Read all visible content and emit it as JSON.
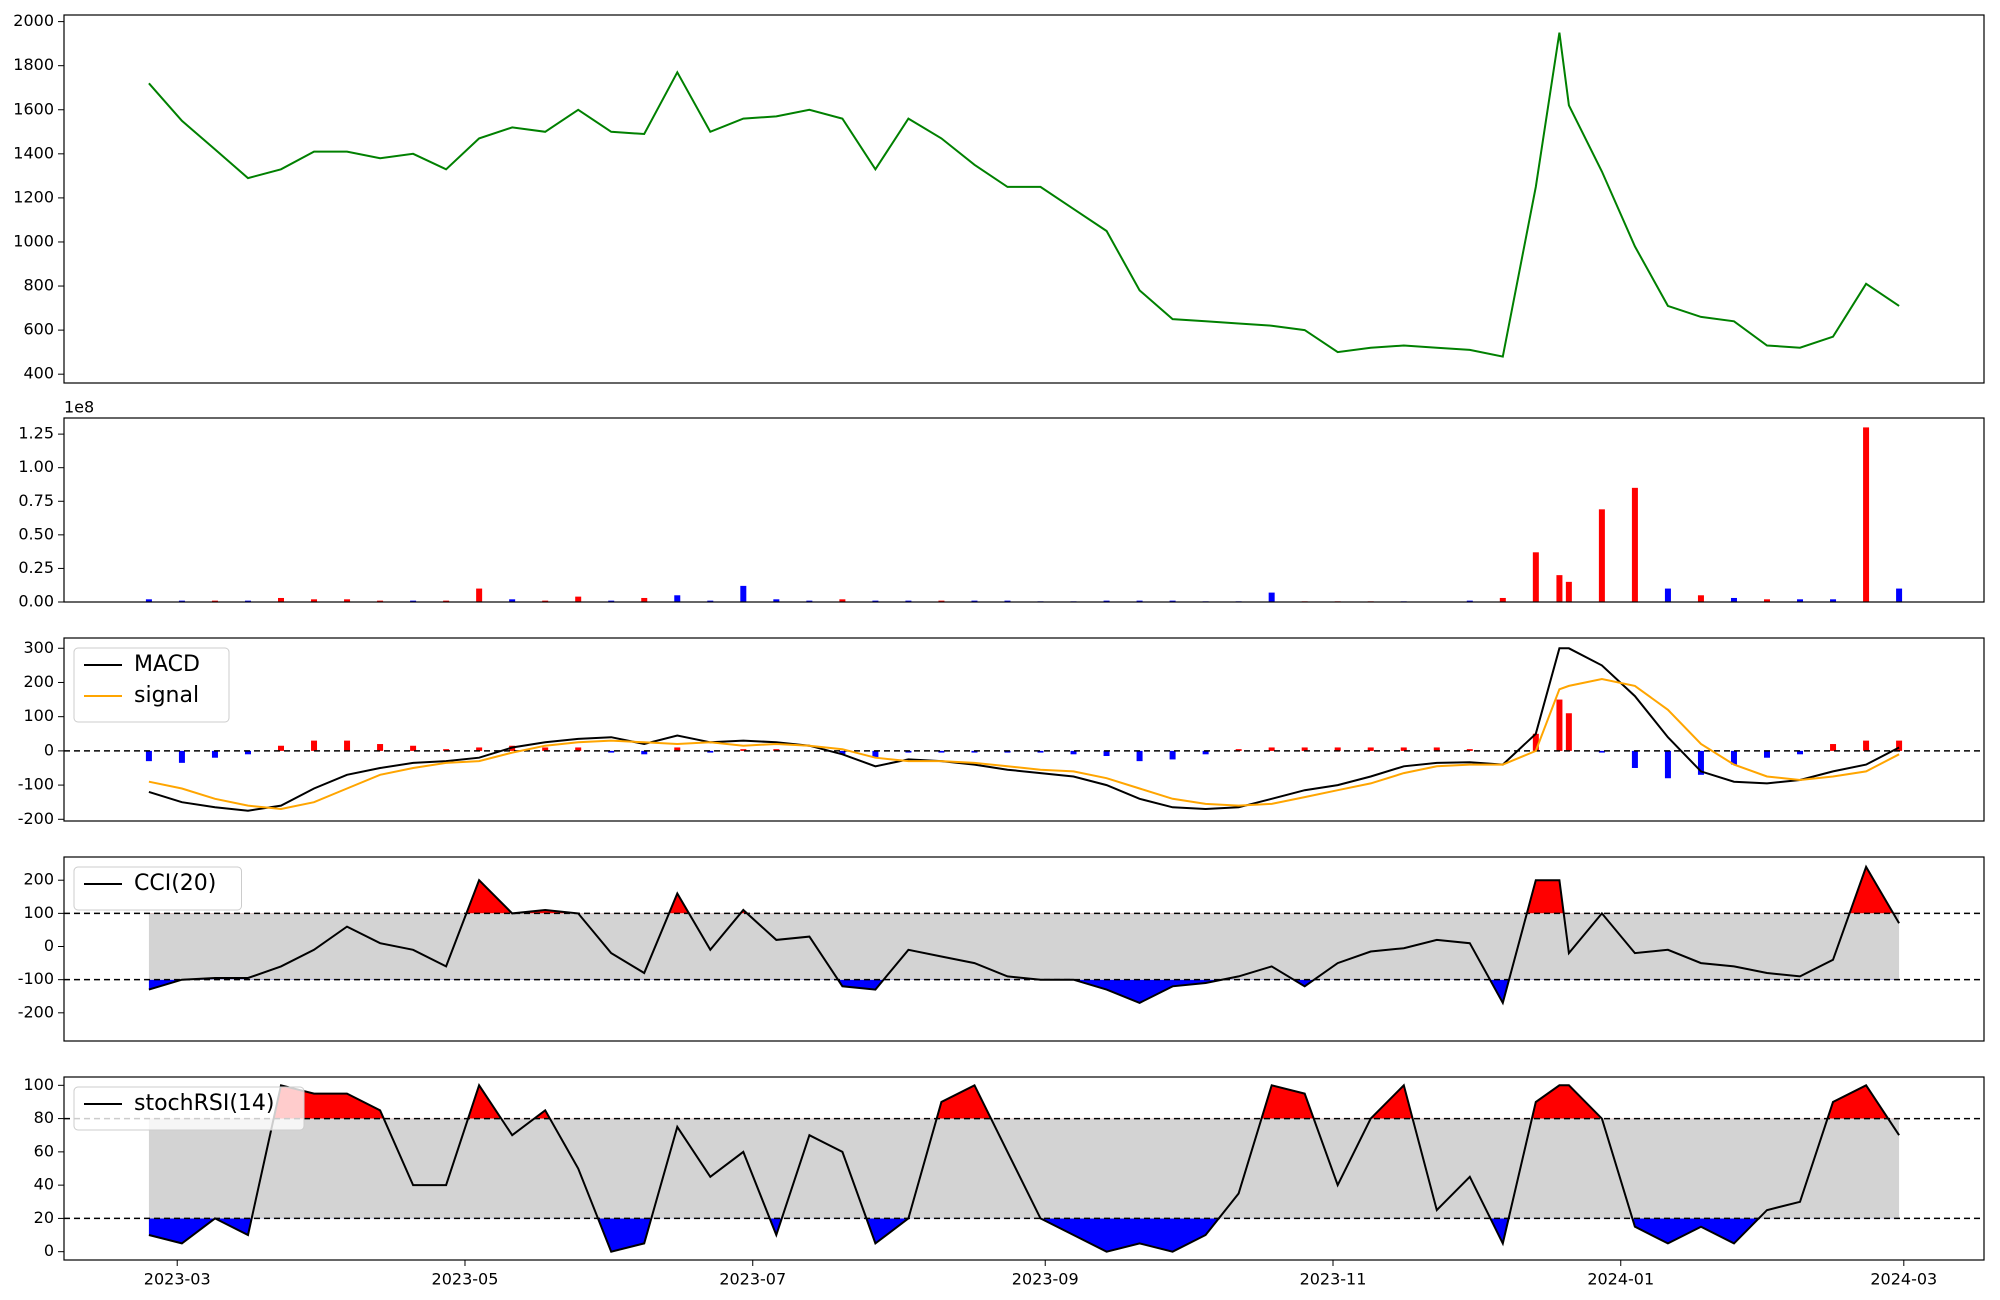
{
  "chart_data": [
    {
      "type": "line",
      "x": [
        "2023-02-23",
        "2023-03-02",
        "2023-03-09",
        "2023-03-16",
        "2023-03-23",
        "2023-03-30",
        "2023-04-06",
        "2023-04-13",
        "2023-04-20",
        "2023-04-27",
        "2023-05-04",
        "2023-05-11",
        "2023-05-18",
        "2023-05-25",
        "2023-06-01",
        "2023-06-08",
        "2023-06-15",
        "2023-06-22",
        "2023-06-29",
        "2023-07-06",
        "2023-07-13",
        "2023-07-20",
        "2023-07-27",
        "2023-08-03",
        "2023-08-10",
        "2023-08-17",
        "2023-08-24",
        "2023-08-31",
        "2023-09-07",
        "2023-09-14",
        "2023-09-21",
        "2023-09-28",
        "2023-10-05",
        "2023-10-12",
        "2023-10-19",
        "2023-10-26",
        "2023-11-02",
        "2023-11-09",
        "2023-11-16",
        "2023-11-23",
        "2023-11-30",
        "2023-12-07",
        "2023-12-14",
        "2023-12-19",
        "2023-12-21",
        "2023-12-28",
        "2024-01-04",
        "2024-01-11",
        "2024-01-18",
        "2024-01-25",
        "2024-02-01",
        "2024-02-08",
        "2024-02-15",
        "2024-02-22",
        "2024-02-29"
      ],
      "xlim": [
        "2023-02-05",
        "2024-03-18"
      ],
      "ylim": [
        360,
        2030
      ],
      "yticks": [
        400,
        600,
        800,
        1000,
        1200,
        1400,
        1600,
        1800,
        2000
      ],
      "series": [
        {
          "color": "green",
          "values": [
            1720,
            1550,
            1420,
            1290,
            1330,
            1410,
            1410,
            1380,
            1400,
            1330,
            1470,
            1520,
            1500,
            1600,
            1500,
            1490,
            1770,
            1500,
            1560,
            1570,
            1600,
            1560,
            1330,
            1560,
            1470,
            1350,
            1250,
            1250,
            1150,
            1050,
            780,
            650,
            640,
            630,
            620,
            600,
            500,
            520,
            530,
            520,
            510,
            480,
            1250,
            1950,
            1620,
            1320,
            980,
            710,
            660,
            640,
            530,
            520,
            570,
            810,
            710
          ]
        }
      ]
    },
    {
      "type": "bar",
      "offset_label": "1e8",
      "ylim": [
        0,
        1.37
      ],
      "yticks": [
        {
          "value": 0,
          "label": "0.00"
        },
        0.25,
        {
          "value": 0.5,
          "label": "0.50"
        },
        0.75,
        {
          "value": 1,
          "label": "1.00"
        },
        1.25
      ],
      "values": [
        0.02,
        0.01,
        0.01,
        0.01,
        0.03,
        0.02,
        0.02,
        0.01,
        0.01,
        0.01,
        0.1,
        0.02,
        0.01,
        0.04,
        0.01,
        0.03,
        0.05,
        0.01,
        0.12,
        0.02,
        0.01,
        0.02,
        0.01,
        0.01,
        0.01,
        0.01,
        0.01,
        0.005,
        0.005,
        0.01,
        0.01,
        0.01,
        0.005,
        0.005,
        0.07,
        0.005,
        0.005,
        0.005,
        0.005,
        0,
        0.01,
        0.03,
        0.37,
        0.2,
        0.15,
        0.69,
        0.85,
        0.1,
        0.05,
        0.03,
        0.02,
        0.02,
        0.02,
        1.3,
        0.1
      ],
      "colors": [
        "blue",
        "blue",
        "red",
        "blue",
        "red",
        "red",
        "red",
        "red",
        "blue",
        "red",
        "red",
        "blue",
        "red",
        "red",
        "blue",
        "red",
        "blue",
        "blue",
        "blue",
        "blue",
        "blue",
        "red",
        "blue",
        "blue",
        "red",
        "blue",
        "blue",
        "blue",
        "blue",
        "blue",
        "blue",
        "blue",
        "blue",
        "blue",
        "blue",
        "red",
        "red",
        "red",
        "blue",
        "blue",
        "blue",
        "red",
        "red",
        "red",
        "red",
        "red",
        "red",
        "blue",
        "red",
        "blue",
        "red",
        "blue",
        "blue",
        "red",
        "blue"
      ]
    },
    {
      "type": "macd",
      "legend": "upper left",
      "ylim": [
        -205,
        330
      ],
      "yticks": [
        -200,
        -100,
        0,
        100,
        200,
        300
      ],
      "hlines": [
        0
      ],
      "series": [
        {
          "name": "MACD",
          "color": "black",
          "values": [
            -120,
            -150,
            -165,
            -175,
            -160,
            -110,
            -70,
            -50,
            -35,
            -30,
            -20,
            10,
            25,
            35,
            40,
            20,
            45,
            25,
            30,
            25,
            15,
            -10,
            -45,
            -25,
            -30,
            -40,
            -55,
            -65,
            -75,
            -100,
            -140,
            -165,
            -170,
            -165,
            -140,
            -115,
            -100,
            -75,
            -45,
            -35,
            -33,
            -40,
            50,
            300,
            300,
            250,
            160,
            40,
            -60,
            -90,
            -95,
            -85,
            -60,
            -40,
            10
          ]
        },
        {
          "name": "signal",
          "color": "orange",
          "values": [
            -90,
            -110,
            -140,
            -160,
            -170,
            -150,
            -110,
            -70,
            -50,
            -35,
            -30,
            -5,
            15,
            25,
            30,
            25,
            20,
            25,
            15,
            20,
            15,
            5,
            -20,
            -30,
            -30,
            -35,
            -45,
            -55,
            -60,
            -80,
            -110,
            -140,
            -155,
            -160,
            -155,
            -135,
            -115,
            -95,
            -65,
            -45,
            -40,
            -40,
            0,
            180,
            190,
            210,
            190,
            120,
            20,
            -40,
            -75,
            -85,
            -75,
            -60,
            -10
          ]
        }
      ],
      "histogram": {
        "up_color": "red",
        "down_color": "blue",
        "values": [
          -30,
          -35,
          -20,
          -10,
          15,
          30,
          30,
          20,
          15,
          5,
          10,
          15,
          10,
          10,
          -5,
          -10,
          10,
          -5,
          5,
          5,
          0,
          -10,
          -20,
          -5,
          -5,
          -5,
          -5,
          -5,
          -10,
          -15,
          -30,
          -25,
          -10,
          5,
          10,
          10,
          10,
          10,
          10,
          10,
          5,
          0,
          50,
          150,
          110,
          -5,
          -50,
          -80,
          -70,
          -40,
          -20,
          -10,
          20,
          30,
          30
        ]
      }
    },
    {
      "type": "oscillator",
      "legend": "upper left",
      "ylim": [
        -285,
        270
      ],
      "yticks": [
        -200,
        -100,
        0,
        100,
        200
      ],
      "thresholds": [
        100,
        -100
      ],
      "band_color": "lightgray",
      "above_color": "red",
      "below_color": "blue",
      "series": [
        {
          "name": "CCI(20)",
          "color": "black",
          "values": [
            -130,
            -100,
            -95,
            -95,
            -60,
            -10,
            60,
            10,
            -10,
            -60,
            200,
            100,
            110,
            100,
            -20,
            -80,
            160,
            -10,
            110,
            20,
            30,
            -120,
            -130,
            -10,
            -30,
            -50,
            -90,
            -100,
            -100,
            -130,
            -170,
            -120,
            -110,
            -90,
            -60,
            -120,
            -50,
            -15,
            -5,
            20,
            10,
            -170,
            200,
            200,
            -20,
            100,
            -20,
            -10,
            -50,
            -60,
            -80,
            -90,
            -40,
            240,
            70
          ]
        }
      ]
    },
    {
      "type": "oscillator",
      "legend": "upper left",
      "ylim": [
        -5,
        105
      ],
      "yticks": [
        0,
        20,
        40,
        60,
        80,
        100
      ],
      "thresholds": [
        80,
        20
      ],
      "band_color": "lightgray",
      "above_color": "red",
      "below_color": "blue",
      "series": [
        {
          "name": "stochRSI(14)",
          "color": "black",
          "values": [
            10,
            5,
            20,
            10,
            100,
            95,
            95,
            85,
            40,
            40,
            100,
            70,
            85,
            50,
            0,
            5,
            75,
            45,
            60,
            10,
            70,
            60,
            5,
            20,
            90,
            100,
            60,
            20,
            10,
            0,
            5,
            0,
            10,
            35,
            100,
            95,
            40,
            80,
            100,
            25,
            45,
            5,
            90,
            100,
            100,
            80,
            15,
            5,
            15,
            5,
            25,
            30,
            90,
            100,
            70
          ]
        }
      ],
      "xticks": [
        {
          "value": "2023-03-01",
          "label": "2023-03"
        },
        {
          "value": "2023-05-01",
          "label": "2023-05"
        },
        {
          "value": "2023-07-01",
          "label": "2023-07"
        },
        {
          "value": "2023-09-01",
          "label": "2023-09"
        },
        {
          "value": "2023-11-01",
          "label": "2023-11"
        },
        {
          "value": "2024-01-01",
          "label": "2024-01"
        },
        {
          "value": "2024-03-01",
          "label": "2024-03"
        }
      ]
    }
  ]
}
